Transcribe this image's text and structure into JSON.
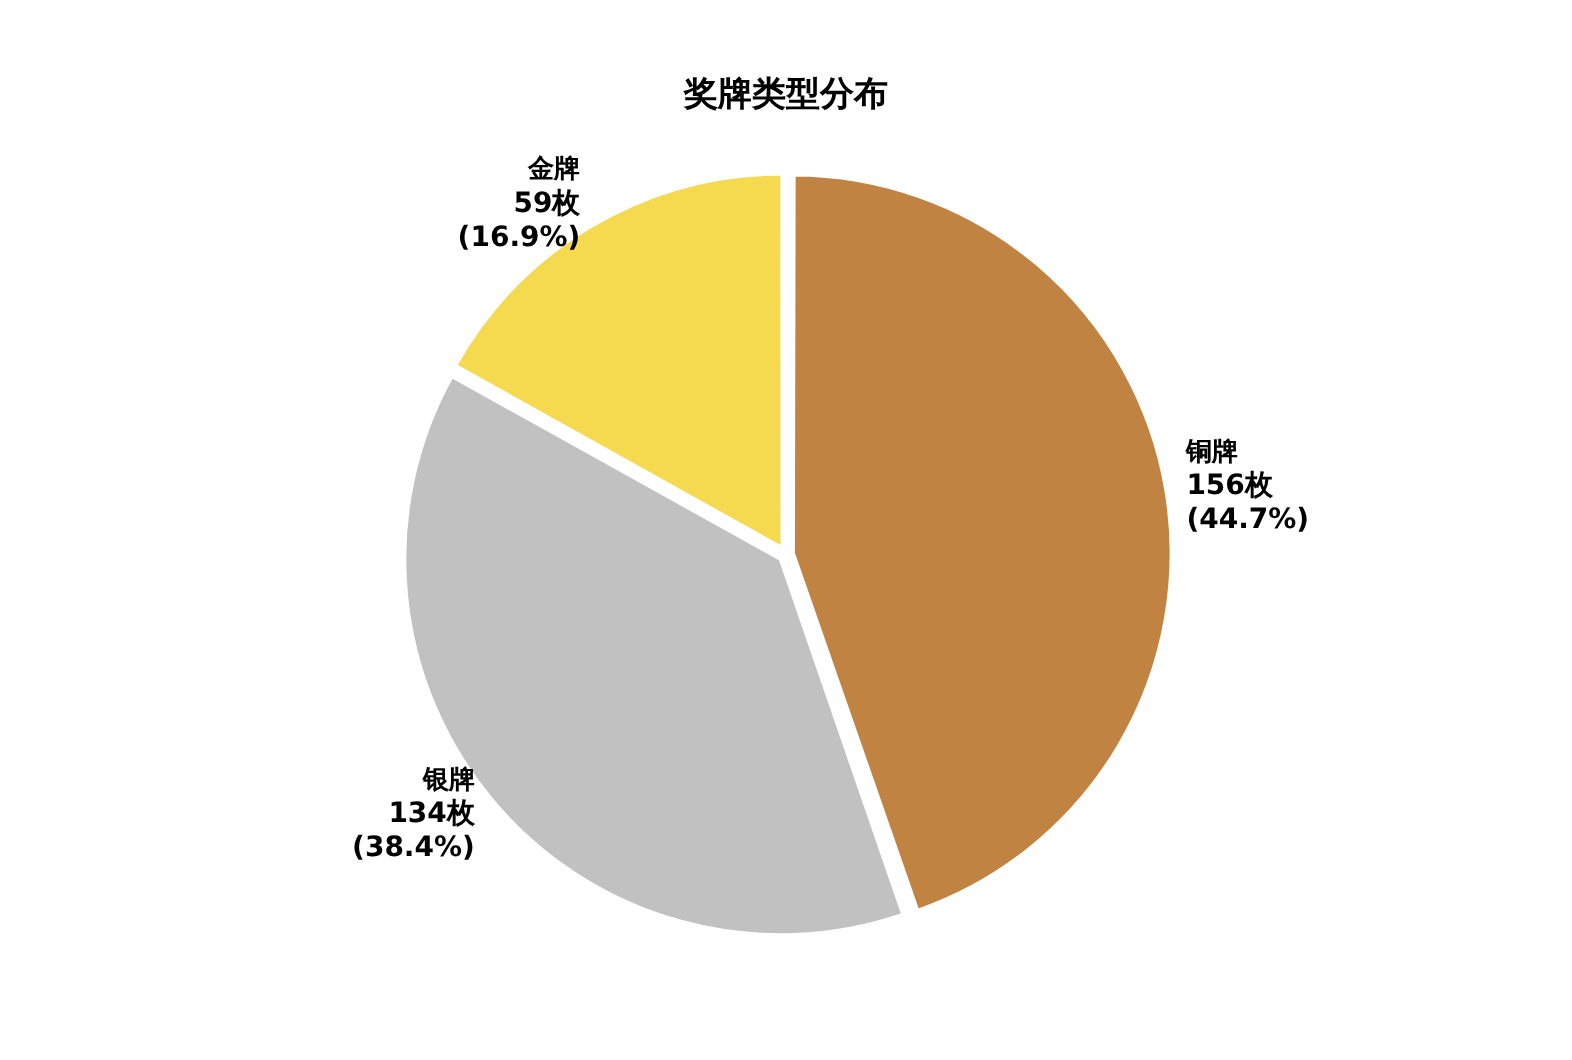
{
  "chart_data": {
    "type": "pie",
    "title": "奖牌类型分布",
    "categories": [
      "铜牌",
      "银牌",
      "金牌"
    ],
    "values": [
      156,
      134,
      59
    ],
    "colors": [
      "#c08342",
      "#c1c1c1",
      "#f5d94f"
    ],
    "value_labels": [
      "156枚\n(44.7%)",
      "134枚\n(38.4%)",
      "59枚\n(16.9%)"
    ],
    "legend": false
  }
}
